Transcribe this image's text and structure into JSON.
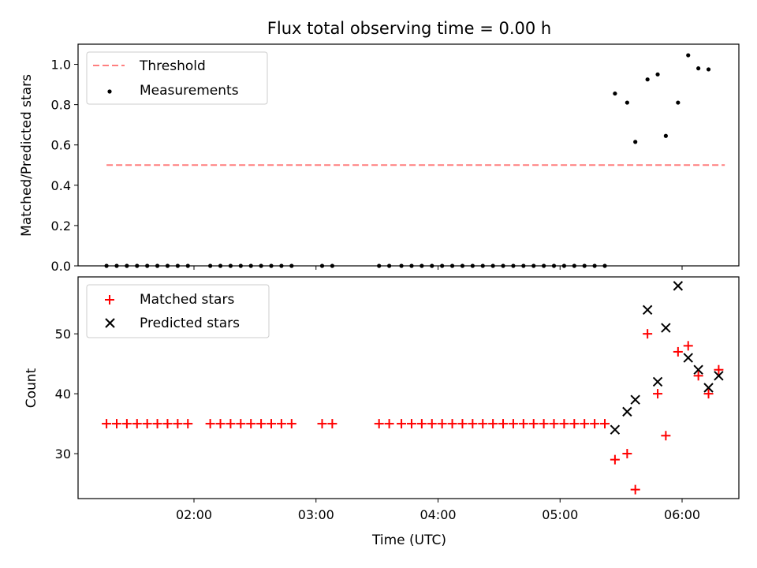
{
  "chart_data": [
    {
      "type": "scatter",
      "title": "Flux total observing time = 0.00 h",
      "xlabel": "",
      "ylabel": "Matched/Predicted stars",
      "ylim": [
        0,
        1.1
      ],
      "yticks": [
        "0.0",
        "0.2",
        "0.4",
        "0.6",
        "0.8",
        "1.0"
      ],
      "xticks_labels_visible": false,
      "legend_position": "upper-left",
      "series": [
        {
          "name": "Threshold",
          "kind": "dashed-line",
          "color": "#ff7f7f",
          "x": [
            "01:17",
            "06:21"
          ],
          "values": [
            0.5,
            0.5
          ]
        },
        {
          "name": "Measurements",
          "kind": "dots",
          "color": "#000000",
          "x": [
            "01:17",
            "01:22",
            "01:27",
            "01:32",
            "01:37",
            "01:42",
            "01:47",
            "01:52",
            "01:57",
            "02:08",
            "02:13",
            "02:18",
            "02:23",
            "02:28",
            "02:33",
            "02:38",
            "02:43",
            "02:48",
            "03:03",
            "03:08",
            "03:31",
            "03:36",
            "03:42",
            "03:47",
            "03:52",
            "03:57",
            "04:02",
            "04:07",
            "04:12",
            "04:17",
            "04:22",
            "04:27",
            "04:32",
            "04:37",
            "04:42",
            "04:47",
            "04:52",
            "04:57",
            "05:02",
            "05:07",
            "05:12",
            "05:17",
            "05:22",
            "05:27",
            "05:33",
            "05:37",
            "05:43",
            "05:48",
            "05:52",
            "05:58",
            "06:03",
            "06:08",
            "06:13"
          ],
          "values": [
            0,
            0,
            0,
            0,
            0,
            0,
            0,
            0,
            0,
            0,
            0,
            0,
            0,
            0,
            0,
            0,
            0,
            0,
            0,
            0,
            0,
            0,
            0,
            0,
            0,
            0,
            0,
            0,
            0,
            0,
            0,
            0,
            0,
            0,
            0,
            0,
            0,
            0,
            0,
            0,
            0,
            0,
            0,
            0.855,
            0.81,
            0.615,
            0.925,
            0.95,
            0.645,
            0.81,
            1.045,
            0.98,
            0.975
          ]
        }
      ]
    },
    {
      "type": "scatter",
      "title": "",
      "xlabel": "Time (UTC)",
      "ylabel": "Count",
      "ylim": [
        22.5,
        59.5
      ],
      "yticks": [
        "30",
        "40",
        "50"
      ],
      "xticks": [
        "02:00",
        "03:00",
        "04:00",
        "05:00",
        "06:00"
      ],
      "legend_position": "upper-left",
      "series": [
        {
          "name": "Matched stars",
          "kind": "plus",
          "color": "#ff0000",
          "x": [
            "01:17",
            "01:22",
            "01:27",
            "01:32",
            "01:37",
            "01:42",
            "01:47",
            "01:52",
            "01:57",
            "02:08",
            "02:13",
            "02:18",
            "02:23",
            "02:28",
            "02:33",
            "02:38",
            "02:43",
            "02:48",
            "03:03",
            "03:08",
            "03:31",
            "03:36",
            "03:42",
            "03:47",
            "03:52",
            "03:57",
            "04:02",
            "04:07",
            "04:12",
            "04:17",
            "04:22",
            "04:27",
            "04:32",
            "04:37",
            "04:42",
            "04:47",
            "04:52",
            "04:57",
            "05:02",
            "05:07",
            "05:12",
            "05:17",
            "05:22",
            "05:27",
            "05:33",
            "05:37",
            "05:43",
            "05:48",
            "05:52",
            "05:58",
            "06:03",
            "06:08",
            "06:13",
            "06:18"
          ],
          "values": [
            35,
            35,
            35,
            35,
            35,
            35,
            35,
            35,
            35,
            35,
            35,
            35,
            35,
            35,
            35,
            35,
            35,
            35,
            35,
            35,
            35,
            35,
            35,
            35,
            35,
            35,
            35,
            35,
            35,
            35,
            35,
            35,
            35,
            35,
            35,
            35,
            35,
            35,
            35,
            35,
            35,
            35,
            35,
            29,
            30,
            24,
            50,
            40,
            33,
            47,
            48,
            43,
            40,
            44
          ]
        },
        {
          "name": "Predicted stars",
          "kind": "x",
          "color": "#000000",
          "x": [
            "05:27",
            "05:33",
            "05:37",
            "05:43",
            "05:48",
            "05:52",
            "05:58",
            "06:03",
            "06:08",
            "06:13",
            "06:18"
          ],
          "values": [
            34,
            37,
            39,
            54,
            42,
            51,
            58,
            46,
            44,
            41,
            43
          ]
        }
      ]
    }
  ]
}
